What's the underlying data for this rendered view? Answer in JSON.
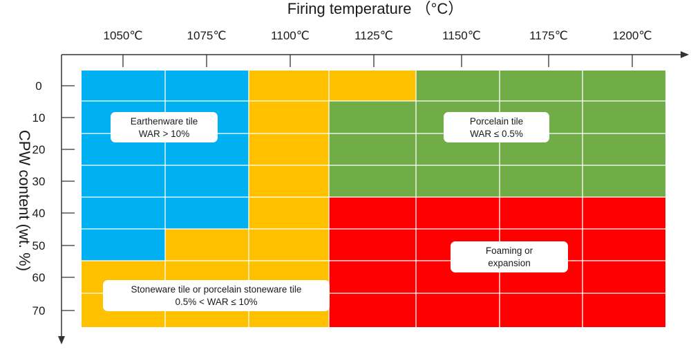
{
  "chart_data": {
    "type": "heatmap",
    "title": "",
    "xlabel": "Firing temperature （°C）",
    "ylabel": "CPW content (wt. %)",
    "x_categories": [
      "1050℃",
      "1075℃",
      "1100℃",
      "1125℃",
      "1150℃",
      "1175℃",
      "1200℃"
    ],
    "y_categories": [
      "0",
      "10",
      "20",
      "30",
      "40",
      "50",
      "60",
      "70"
    ],
    "regions": {
      "earthenware": {
        "color": "#00b0f0",
        "label_line1": "Earthenware tile",
        "label_line2": "WAR > 10%"
      },
      "stoneware": {
        "color": "#ffc000",
        "label_line1": "Stoneware tile or porcelain stoneware tile",
        "label_line2": "0.5% < WAR ≤ 10%"
      },
      "porcelain": {
        "color": "#70ad47",
        "label_line1": "Porcelain tile",
        "label_line2": "WAR ≤ 0.5%"
      },
      "foaming": {
        "color": "#ff0000",
        "label_line1": "Foaming or",
        "label_line2": "expansion"
      }
    },
    "cells": [
      [
        "earthenware",
        "earthenware",
        "stoneware",
        "stoneware",
        "porcelain",
        "porcelain",
        "porcelain"
      ],
      [
        "earthenware",
        "earthenware",
        "stoneware",
        "porcelain",
        "porcelain",
        "porcelain",
        "porcelain"
      ],
      [
        "earthenware",
        "earthenware",
        "stoneware",
        "porcelain",
        "porcelain",
        "porcelain",
        "porcelain"
      ],
      [
        "earthenware",
        "earthenware",
        "stoneware",
        "porcelain",
        "porcelain",
        "porcelain",
        "porcelain"
      ],
      [
        "earthenware",
        "earthenware",
        "stoneware",
        "foaming",
        "foaming",
        "foaming",
        "foaming"
      ],
      [
        "earthenware",
        "stoneware",
        "stoneware",
        "foaming",
        "foaming",
        "foaming",
        "foaming"
      ],
      [
        "stoneware",
        "stoneware",
        "stoneware",
        "foaming",
        "foaming",
        "foaming",
        "foaming"
      ],
      [
        "stoneware",
        "stoneware",
        "stoneware",
        "foaming",
        "foaming",
        "foaming",
        "foaming"
      ]
    ]
  }
}
